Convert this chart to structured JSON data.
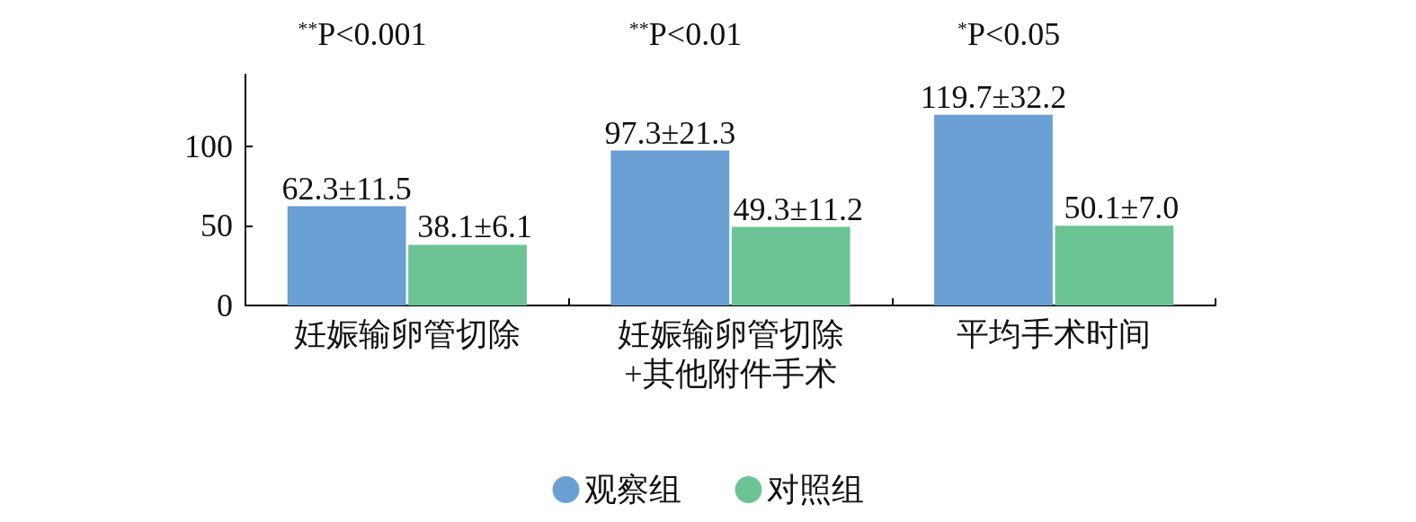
{
  "chart_data": {
    "type": "bar",
    "categories": [
      "妊娠输卵管切除",
      "妊娠输卵管切除\n+其他附件手术",
      "平均手术时间"
    ],
    "series": [
      {
        "name": "观察组",
        "color": "#6a9fd4",
        "values": [
          62.3,
          97.3,
          119.7
        ],
        "value_labels": [
          "62.3±11.5",
          "97.3±21.3",
          "119.7±32.2"
        ]
      },
      {
        "name": "对照组",
        "color": "#6cc396",
        "values": [
          38.1,
          49.3,
          50.1
        ],
        "value_labels": [
          "38.1±6.1",
          "49.3±11.2",
          "50.1±7.0"
        ]
      }
    ],
    "ylim": [
      0,
      145
    ],
    "yticks": [
      0,
      50,
      100
    ],
    "grid": false,
    "legend": "bottom",
    "marker": "circle",
    "annotations": [
      "$^{**}$P<0.001",
      "$^{**}$P<0.01",
      "$^{*}$P<0.05"
    ]
  }
}
